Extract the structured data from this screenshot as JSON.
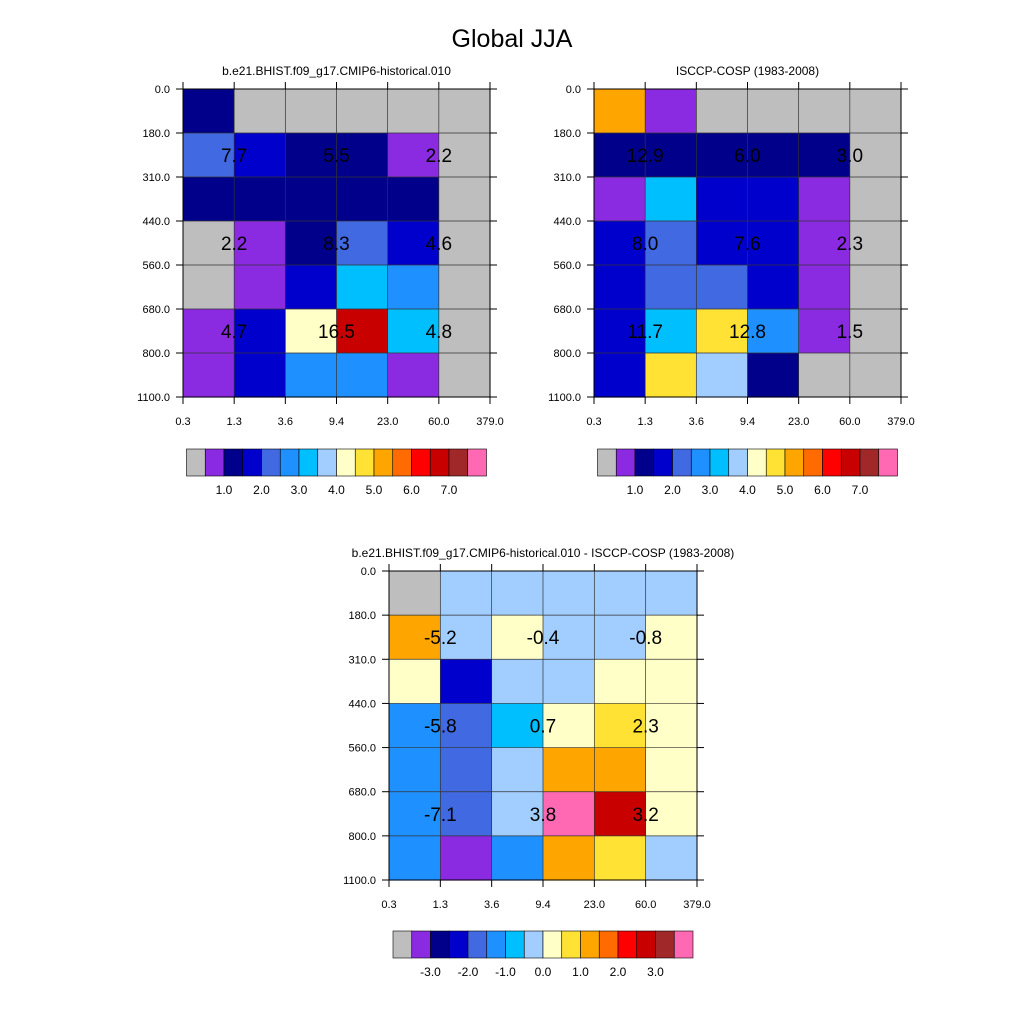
{
  "title": "Global JJA",
  "palettes": {
    "abs": [
      "#bebebe",
      "#8a2be2",
      "#00008b",
      "#0000cd",
      "#4169e1",
      "#1e90ff",
      "#00bfff",
      "#a2cdff",
      "#ffffc8",
      "#ffe234",
      "#ffa500",
      "#ff6b00",
      "#ff0000",
      "#c80000",
      "#a02828",
      "#ff69b4"
    ],
    "diff": [
      "#bebebe",
      "#8a2be2",
      "#00008b",
      "#0000cd",
      "#4169e1",
      "#1e90ff",
      "#00bfff",
      "#a2cdff",
      "#ffffc8",
      "#ffe234",
      "#ffa500",
      "#ff6b00",
      "#ff0000",
      "#c80000",
      "#a02828",
      "#ff69b4"
    ]
  },
  "chart_data": [
    {
      "type": "heatmap",
      "title": "b.e21.BHIST.f09_g17.CMIP6-historical.010",
      "x_ticks": [
        "0.3",
        "1.3",
        "3.6",
        "9.4",
        "23.0",
        "60.0",
        "379.0"
      ],
      "y_ticks": [
        "0.0",
        "180.0",
        "310.0",
        "440.0",
        "560.0",
        "680.0",
        "800.0",
        "1100.0"
      ],
      "grid": true,
      "cells": [
        [
          2,
          0,
          0,
          0,
          0,
          0
        ],
        [
          4,
          3,
          2,
          2,
          1,
          0
        ],
        [
          2,
          2,
          2,
          2,
          2,
          0
        ],
        [
          0,
          1,
          2,
          4,
          3,
          0
        ],
        [
          0,
          1,
          3,
          6,
          5,
          0
        ],
        [
          1,
          3,
          8,
          13,
          6,
          0
        ],
        [
          1,
          3,
          5,
          5,
          1,
          0
        ]
      ],
      "labels": [
        {
          "text": "7.7",
          "col": 1,
          "row": 1
        },
        {
          "text": "5.5",
          "col": 3,
          "row": 1
        },
        {
          "text": "2.2",
          "col": 5,
          "row": 1
        },
        {
          "text": "2.2",
          "col": 1,
          "row": 3
        },
        {
          "text": "8.3",
          "col": 3,
          "row": 3
        },
        {
          "text": "4.6",
          "col": 5,
          "row": 3
        },
        {
          "text": "4.7",
          "col": 1,
          "row": 5
        },
        {
          "text": "16.5",
          "col": 3,
          "row": 5
        },
        {
          "text": "4.8",
          "col": 5,
          "row": 5
        }
      ],
      "colorbar_labels": [
        "1.0",
        "2.0",
        "3.0",
        "4.0",
        "5.0",
        "6.0",
        "7.0"
      ],
      "palette": "abs"
    },
    {
      "type": "heatmap",
      "title": "ISCCP-COSP (1983-2008)",
      "x_ticks": [
        "0.3",
        "1.3",
        "3.6",
        "9.4",
        "23.0",
        "60.0",
        "379.0"
      ],
      "y_ticks": [
        "0.0",
        "180.0",
        "310.0",
        "440.0",
        "560.0",
        "680.0",
        "800.0",
        "1100.0"
      ],
      "grid": true,
      "cells": [
        [
          10,
          1,
          0,
          0,
          0,
          0
        ],
        [
          2,
          2,
          2,
          2,
          2,
          0
        ],
        [
          1,
          6,
          3,
          3,
          1,
          0
        ],
        [
          3,
          4,
          3,
          3,
          1,
          0
        ],
        [
          3,
          4,
          4,
          3,
          1,
          0
        ],
        [
          3,
          6,
          9,
          5,
          1,
          0
        ],
        [
          3,
          9,
          7,
          2,
          0,
          0
        ]
      ],
      "labels": [
        {
          "text": "12.9",
          "col": 1,
          "row": 1
        },
        {
          "text": "6.0",
          "col": 3,
          "row": 1
        },
        {
          "text": "3.0",
          "col": 5,
          "row": 1
        },
        {
          "text": "8.0",
          "col": 1,
          "row": 3
        },
        {
          "text": "7.6",
          "col": 3,
          "row": 3
        },
        {
          "text": "2.3",
          "col": 5,
          "row": 3
        },
        {
          "text": "11.7",
          "col": 1,
          "row": 5
        },
        {
          "text": "12.8",
          "col": 3,
          "row": 5
        },
        {
          "text": "1.5",
          "col": 5,
          "row": 5
        }
      ],
      "colorbar_labels": [
        "1.0",
        "2.0",
        "3.0",
        "4.0",
        "5.0",
        "6.0",
        "7.0"
      ],
      "palette": "abs"
    },
    {
      "type": "heatmap",
      "title": "b.e21.BHIST.f09_g17.CMIP6-historical.010 - ISCCP-COSP (1983-2008)",
      "x_ticks": [
        "0.3",
        "1.3",
        "3.6",
        "9.4",
        "23.0",
        "60.0",
        "379.0"
      ],
      "y_ticks": [
        "0.0",
        "180.0",
        "310.0",
        "440.0",
        "560.0",
        "680.0",
        "800.0",
        "1100.0"
      ],
      "grid": true,
      "cells": [
        [
          0,
          7,
          7,
          7,
          7,
          7
        ],
        [
          10,
          7,
          8,
          7,
          7,
          8
        ],
        [
          8,
          3,
          7,
          7,
          8,
          8
        ],
        [
          5,
          4,
          6,
          8,
          9,
          8
        ],
        [
          5,
          4,
          7,
          10,
          10,
          8
        ],
        [
          5,
          4,
          7,
          15,
          13,
          8
        ],
        [
          5,
          1,
          5,
          10,
          9,
          7
        ]
      ],
      "labels": [
        {
          "text": "-5.2",
          "col": 1,
          "row": 1
        },
        {
          "text": "-0.4",
          "col": 3,
          "row": 1
        },
        {
          "text": "-0.8",
          "col": 5,
          "row": 1
        },
        {
          "text": "-5.8",
          "col": 1,
          "row": 3
        },
        {
          "text": "0.7",
          "col": 3,
          "row": 3
        },
        {
          "text": "2.3",
          "col": 5,
          "row": 3
        },
        {
          "text": "-7.1",
          "col": 1,
          "row": 5
        },
        {
          "text": "3.8",
          "col": 3,
          "row": 5
        },
        {
          "text": "3.2",
          "col": 5,
          "row": 5
        }
      ],
      "colorbar_labels": [
        "-3.0",
        "-2.0",
        "-1.0",
        "0.0",
        "1.0",
        "2.0",
        "3.0"
      ],
      "palette": "diff"
    }
  ]
}
